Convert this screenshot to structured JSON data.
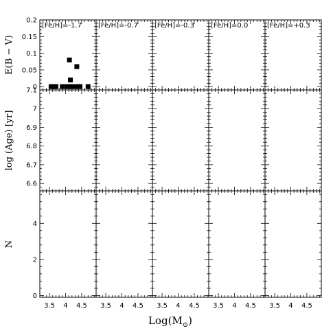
{
  "figure": {
    "xlabel": "Log(M",
    "xlabel_sub": "⊙",
    "xlabel_end": ")",
    "xticks": [
      "3.5",
      "4",
      "4.5"
    ],
    "xlim": [
      3.2,
      4.95
    ]
  },
  "columns": [
    {
      "label": "[Fe/H]=-1.7"
    },
    {
      "label": "[Fe/H]=-0.7"
    },
    {
      "label": "[Fe/H]=-0.3"
    },
    {
      "label": "[Fe/H]=0.0"
    },
    {
      "label": "[Fe/H]=+0.3"
    }
  ],
  "rows": [
    {
      "ylabel": "E(B − V)",
      "ylim": [
        -0.01,
        0.2
      ],
      "ticks": [
        {
          "v": 0,
          "t": "0"
        },
        {
          "v": 0.05,
          "t": "0.05"
        },
        {
          "v": 0.1,
          "t": "0.1"
        },
        {
          "v": 0.15,
          "t": "0.15"
        },
        {
          "v": 0.2,
          "t": "0.2"
        }
      ]
    },
    {
      "ylabel": "log (Age) [yr]",
      "ylim": [
        6.56,
        7.1
      ],
      "ticks": [
        {
          "v": 6.6,
          "t": "6.6"
        },
        {
          "v": 6.7,
          "t": "6.7"
        },
        {
          "v": 6.8,
          "t": "6.8"
        },
        {
          "v": 6.9,
          "t": "6.9"
        },
        {
          "v": 7.0,
          "t": "7"
        },
        {
          "v": 7.1,
          "t": "7.1"
        }
      ]
    },
    {
      "ylabel": "N",
      "ylim": [
        -0.1,
        5.8
      ],
      "ticks": [
        {
          "v": 0,
          "t": "0"
        },
        {
          "v": 2,
          "t": "2"
        },
        {
          "v": 4,
          "t": "4"
        }
      ]
    }
  ],
  "chart_data": [
    {
      "type": "scatter",
      "panel": "E(B-V) vs Log(M)",
      "series": [
        {
          "name": "[Fe/H]=-1.7",
          "x": [
            3.55,
            3.6,
            3.65,
            3.7,
            3.9,
            4.05,
            4.1,
            4.2,
            4.3,
            4.4,
            4.45,
            4.7
          ],
          "y": [
            0,
            0,
            0,
            0,
            0,
            0,
            0,
            0,
            0,
            0,
            0,
            0
          ]
        },
        {
          "name": "[Fe/H]=-1.7",
          "x": [
            4.15,
            4.35,
            4.12
          ],
          "y": [
            0.02,
            0.06,
            0.08
          ]
        }
      ]
    }
  ]
}
